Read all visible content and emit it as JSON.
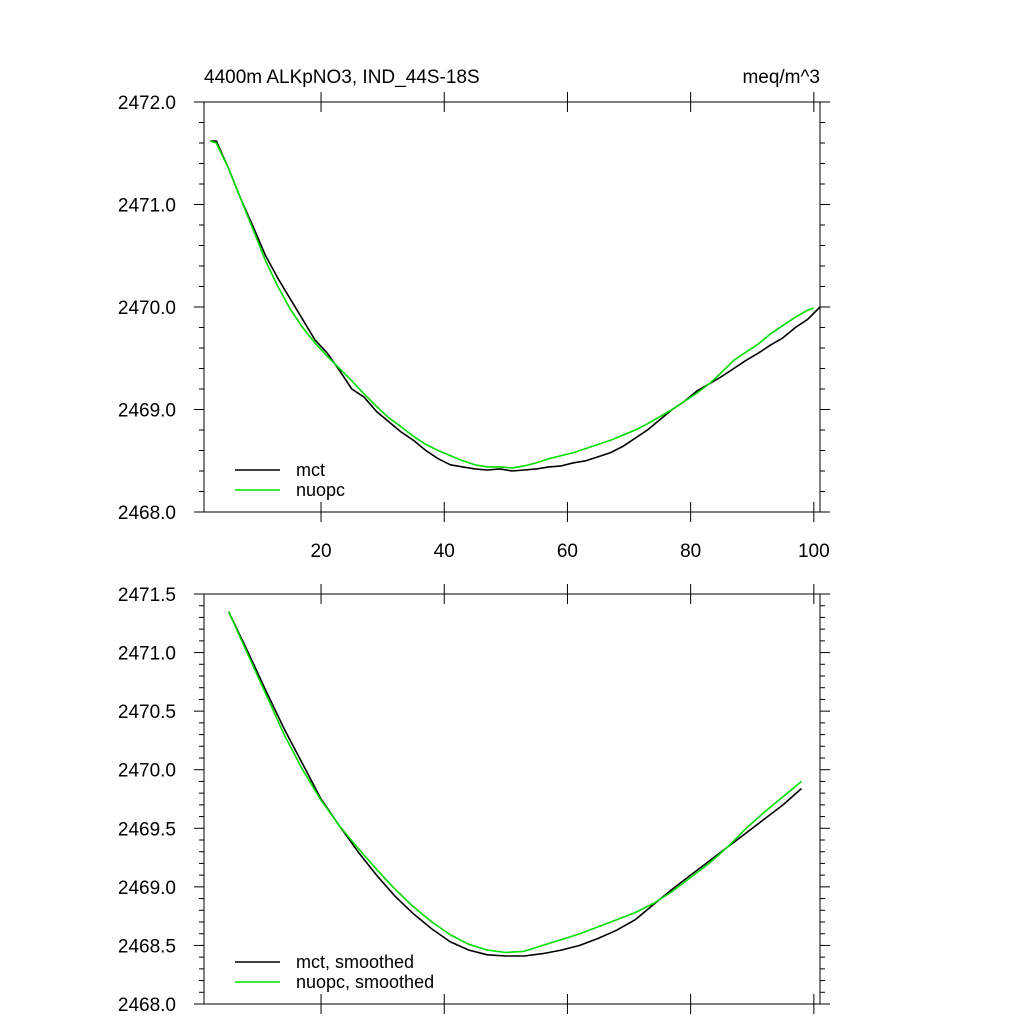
{
  "figure": {
    "title_left": "4400m ALKpNO3, IND_44S-18S",
    "title_right": "meq/m^3"
  },
  "chart_data": [
    {
      "type": "line",
      "xlim": [
        1,
        101
      ],
      "ylim": [
        2468.0,
        2472.0
      ],
      "x_ticks": [
        20,
        40,
        60,
        80,
        100
      ],
      "x_tick_labels": [
        "20",
        "40",
        "60",
        "80",
        "100"
      ],
      "y_ticks": [
        2468.0,
        2469.0,
        2470.0,
        2471.0,
        2472.0
      ],
      "y_tick_labels": [
        "2468.0",
        "2469.0",
        "2470.0",
        "2471.0",
        "2472.0"
      ],
      "legend_placement": "bottom-left",
      "grid": false,
      "series": [
        {
          "name": "mct",
          "color": "#000000",
          "x": [
            2,
            3,
            5,
            7,
            9,
            11,
            13,
            15,
            17,
            19,
            21,
            23,
            25,
            27,
            29,
            31,
            33,
            35,
            37,
            39,
            41,
            43,
            45,
            47,
            49,
            51,
            53,
            55,
            57,
            59,
            61,
            63,
            65,
            67,
            69,
            71,
            73,
            75,
            77,
            79,
            81,
            83,
            85,
            87,
            89,
            91,
            93,
            95,
            97,
            99,
            101
          ],
          "y": [
            2471.62,
            2471.62,
            2471.35,
            2471.05,
            2470.78,
            2470.5,
            2470.28,
            2470.08,
            2469.88,
            2469.68,
            2469.55,
            2469.38,
            2469.2,
            2469.12,
            2468.98,
            2468.88,
            2468.78,
            2468.7,
            2468.6,
            2468.52,
            2468.46,
            2468.44,
            2468.42,
            2468.41,
            2468.42,
            2468.4,
            2468.41,
            2468.42,
            2468.44,
            2468.45,
            2468.48,
            2468.5,
            2468.54,
            2468.58,
            2468.64,
            2468.72,
            2468.8,
            2468.9,
            2469.0,
            2469.08,
            2469.18,
            2469.25,
            2469.32,
            2469.4,
            2469.48,
            2469.55,
            2469.63,
            2469.7,
            2469.8,
            2469.88,
            2470.0
          ]
        },
        {
          "name": "nuopc",
          "color": "#00dd00",
          "x": [
            2,
            3,
            5,
            7,
            9,
            11,
            13,
            15,
            17,
            19,
            21,
            23,
            25,
            27,
            29,
            31,
            33,
            35,
            37,
            39,
            41,
            43,
            45,
            47,
            49,
            51,
            53,
            55,
            57,
            59,
            61,
            63,
            65,
            67,
            69,
            71,
            73,
            75,
            77,
            79,
            81,
            83,
            85,
            87,
            89,
            91,
            93,
            95,
            97,
            99,
            100
          ],
          "y": [
            2471.62,
            2471.6,
            2471.35,
            2471.05,
            2470.75,
            2470.45,
            2470.2,
            2469.98,
            2469.8,
            2469.65,
            2469.52,
            2469.4,
            2469.28,
            2469.15,
            2469.03,
            2468.92,
            2468.83,
            2468.74,
            2468.66,
            2468.6,
            2468.55,
            2468.5,
            2468.46,
            2468.44,
            2468.44,
            2468.43,
            2468.45,
            2468.48,
            2468.52,
            2468.55,
            2468.58,
            2468.62,
            2468.66,
            2468.7,
            2468.75,
            2468.8,
            2468.86,
            2468.93,
            2469.0,
            2469.08,
            2469.16,
            2469.25,
            2469.36,
            2469.48,
            2469.56,
            2469.64,
            2469.74,
            2469.82,
            2469.9,
            2469.97,
            2469.99
          ]
        }
      ]
    },
    {
      "type": "line",
      "xlim": [
        1,
        101
      ],
      "ylim": [
        2468.0,
        2471.5
      ],
      "x_ticks": [
        20,
        40,
        60,
        80,
        100
      ],
      "y_ticks": [
        2468.0,
        2468.5,
        2469.0,
        2469.5,
        2470.0,
        2470.5,
        2471.0,
        2471.5
      ],
      "y_tick_labels": [
        "2468.0",
        "2468.5",
        "2469.0",
        "2469.5",
        "2470.0",
        "2470.5",
        "2471.0",
        "2471.5"
      ],
      "legend_placement": "bottom-left",
      "grid": false,
      "series": [
        {
          "name": "mct, smoothed",
          "color": "#000000",
          "x": [
            5,
            8,
            11,
            14,
            17,
            20,
            23,
            26,
            29,
            32,
            35,
            38,
            41,
            44,
            47,
            50,
            53,
            56,
            59,
            62,
            65,
            68,
            71,
            74,
            77,
            80,
            83,
            86,
            89,
            92,
            95,
            98
          ],
          "y": [
            2471.35,
            2471.02,
            2470.68,
            2470.35,
            2470.05,
            2469.75,
            2469.52,
            2469.3,
            2469.1,
            2468.92,
            2468.77,
            2468.64,
            2468.53,
            2468.46,
            2468.42,
            2468.41,
            2468.41,
            2468.43,
            2468.46,
            2468.5,
            2468.56,
            2468.63,
            2468.72,
            2468.85,
            2468.98,
            2469.1,
            2469.22,
            2469.34,
            2469.46,
            2469.58,
            2469.7,
            2469.84
          ]
        },
        {
          "name": "nuopc, smoothed",
          "color": "#00dd00",
          "x": [
            5,
            8,
            11,
            14,
            17,
            20,
            23,
            26,
            29,
            32,
            35,
            38,
            41,
            44,
            47,
            50,
            53,
            56,
            59,
            62,
            65,
            68,
            71,
            74,
            77,
            80,
            83,
            86,
            89,
            92,
            95,
            98
          ],
          "y": [
            2471.35,
            2471.0,
            2470.65,
            2470.3,
            2470.0,
            2469.74,
            2469.52,
            2469.33,
            2469.15,
            2468.98,
            2468.83,
            2468.7,
            2468.59,
            2468.51,
            2468.46,
            2468.44,
            2468.45,
            2468.5,
            2468.55,
            2468.6,
            2468.66,
            2468.72,
            2468.78,
            2468.86,
            2468.96,
            2469.08,
            2469.2,
            2469.34,
            2469.5,
            2469.64,
            2469.77,
            2469.9
          ]
        }
      ]
    }
  ]
}
